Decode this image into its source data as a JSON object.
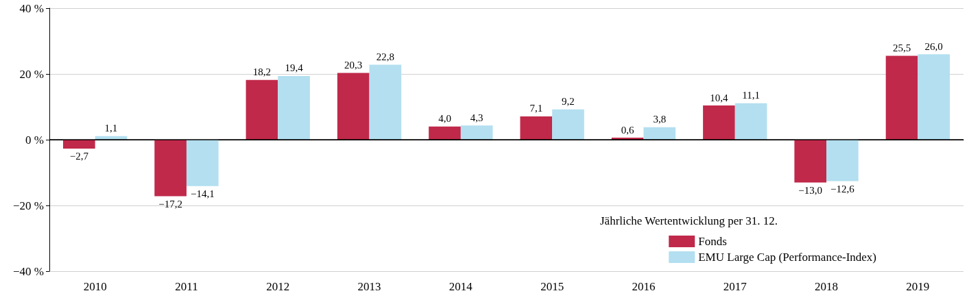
{
  "chart_data": {
    "type": "bar",
    "categories": [
      "2010",
      "2011",
      "2012",
      "2013",
      "2014",
      "2015",
      "2016",
      "2017",
      "2018",
      "2019"
    ],
    "series": [
      {
        "name": "Fonds",
        "color": "#c0294a",
        "values": [
          -2.7,
          -17.2,
          18.2,
          20.3,
          4.0,
          7.1,
          0.6,
          10.4,
          -13.0,
          25.5
        ],
        "value_labels": [
          "−2,7",
          "−17,2",
          "18,2",
          "20,3",
          "4,0",
          "7,1",
          "0,6",
          "10,4",
          "−13,0",
          "25,5"
        ]
      },
      {
        "name": "EMU Large Cap (Performance-Index)",
        "color": "#b3dff0",
        "values": [
          1.1,
          -14.1,
          19.4,
          22.8,
          4.3,
          9.2,
          3.8,
          11.1,
          -12.6,
          26.0
        ],
        "value_labels": [
          "1,1",
          "−14,1",
          "19,4",
          "22,8",
          "4,3",
          "9,2",
          "3,8",
          "11,1",
          "−12,6",
          "26,0"
        ]
      }
    ],
    "legend_title": "Jährliche Wertentwicklung per 31. 12.",
    "legend": "bottom right",
    "ylim": [
      -40,
      40
    ],
    "yticks": [
      {
        "value": -40,
        "label": "−40 %"
      },
      {
        "value": -20,
        "label": "−20 %"
      },
      {
        "value": 0,
        "label": "0 %"
      },
      {
        "value": 20,
        "label": "20 %"
      },
      {
        "value": 40,
        "label": "40 %"
      }
    ],
    "grid": "y",
    "ref_lines": [
      {
        "axis": "y",
        "value": 0,
        "color": "#000000"
      }
    ]
  }
}
